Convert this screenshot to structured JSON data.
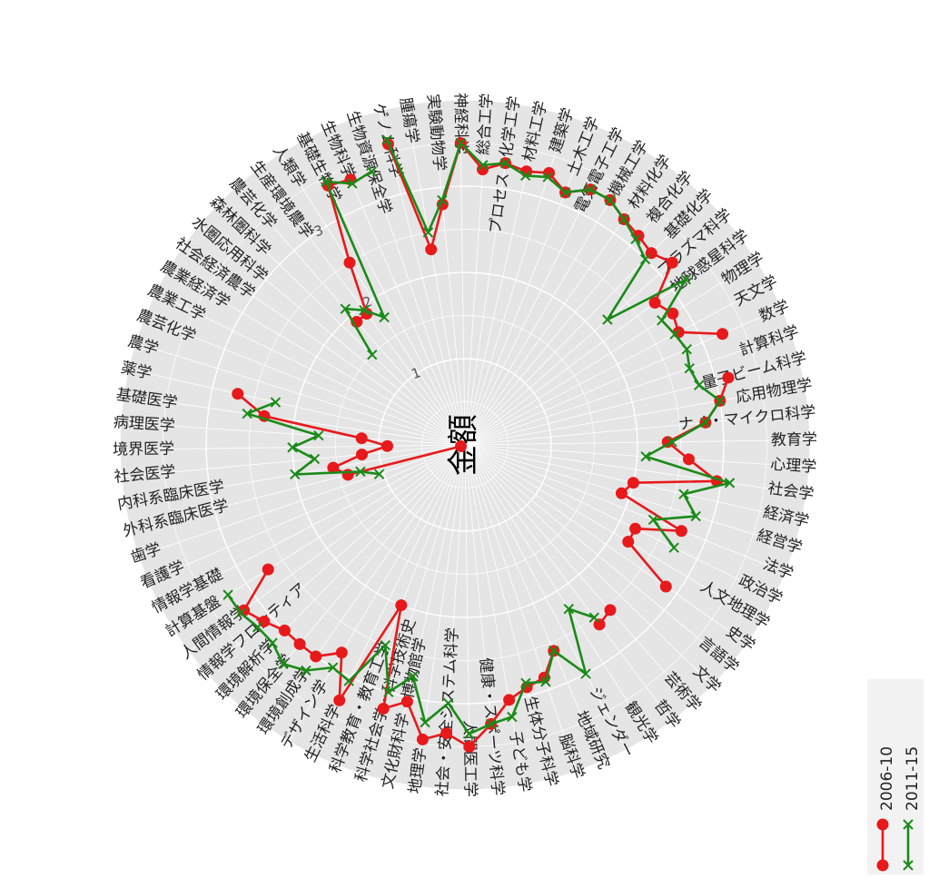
{
  "chart_data": {
    "type": "line",
    "coordinate_system": "polar",
    "center_label": "金額",
    "r_ticks": [
      "1",
      "2",
      "3"
    ],
    "rlim": [
      0,
      4
    ],
    "grid": true,
    "legend_position": "bottom-right",
    "legend_orientation": "vertical",
    "colors": {
      "2006-10": "#e8191b",
      "2011-15": "#1a8a18",
      "grid_bg": "#e5e5e5",
      "grid_line": "#ffffff"
    },
    "categories": [
      "ゲノム科学",
      "腫瘍学",
      "実験動物学",
      "神経科学",
      "総合工学",
      "プロセス・化学工学",
      "材料工学",
      "建築学",
      "土木工学",
      "電気電子工学",
      "機械工学",
      "材料化学",
      "複合化学",
      "基礎化学",
      "プラズマ科学",
      "地球惑星科学",
      "物理学",
      "天文学",
      "数学",
      "計算科学",
      "量子ビーム科学",
      "応用物理学",
      "ナノ・マイクロ科学",
      "教育学",
      "心理学",
      "社会学",
      "経済学",
      "経営学",
      "法学",
      "政治学",
      "人文地理学",
      "史学",
      "言語学",
      "文学",
      "芸術学",
      "哲学",
      "観光学",
      "ジェンダー",
      "地域研究",
      "脳科学",
      "生体分子科学",
      "子ども学",
      "健康・スポーツ科学",
      "人間医工学",
      "社会・安全システム科学",
      "地理学",
      "文化財科学・博物館学",
      "科学社会学・科学技術史",
      "科学教育・教育工学",
      "生活科学",
      "デザイン学",
      "環境創成学",
      "環境保全学",
      "環境解析学",
      "情報学フロンティア",
      "人間情報学",
      "計算基盤",
      "情報学基礎",
      "看護学",
      "歯学",
      "外科系臨床医学",
      "内科系臨床医学",
      "社会医学",
      "境界医学",
      "病理医学",
      "基礎医学",
      "薬学",
      "農学",
      "農芸化学",
      "農業工学",
      "農業経済学",
      "社会経済農学",
      "水圏応用科学",
      "森林圏科学",
      "農芸化学",
      "生産環境農学",
      "人類学",
      "基礎生物学",
      "生物科学",
      "生物資源保全学"
    ],
    "series": [
      {
        "name": "2006-10",
        "values": [
          3.6,
          2.3,
          2.8,
          3.5,
          3.2,
          3.3,
          3.25,
          3.3,
          3.15,
          3.3,
          3.3,
          3.2,
          3.15,
          3.1,
          3.2,
          2.75,
          2.85,
          2.8,
          3.25,
          null,
          3.15,
          3.0,
          2.8,
          2.35,
          2.6,
          2.95,
          2.0,
          1.9,
          2.7,
          2.2,
          2.2,
          2.85,
          null,
          null,
          2.55,
          2.6,
          null,
          null,
          2.6,
          2.85,
          2.9,
          3.0,
          3.25,
          3.5,
          3.35,
          3.45,
          3.05,
          3.2,
          2.0,
          3.3,
          2.8,
          3.0,
          3.0,
          3.0,
          3.1,
          3.2,
          2.7,
          null,
          null,
          0.05,
          1.4,
          1.55,
          1.2,
          0.9,
          1.2,
          2.35,
          2.7,
          null,
          null,
          null,
          null,
          null,
          null,
          null,
          1.9,
          1.9,
          2.5,
          3.4,
          3.35,
          null
        ]
      },
      {
        "name": "2011-15",
        "values": [
          3.65,
          2.5,
          2.85,
          3.5,
          3.25,
          3.3,
          3.2,
          3.25,
          3.15,
          3.3,
          3.3,
          3.2,
          3.1,
          3.0,
          2.2,
          3.2,
          2.7,
          2.75,
          2.8,
          2.75,
          2.8,
          3.0,
          2.8,
          2.4,
          2.1,
          3.1,
          2.6,
          2.8,
          2.35,
          2.7,
          null,
          null,
          null,
          null,
          null,
          2.5,
          2.25,
          3.0,
          2.6,
          2.9,
          2.85,
          3.2,
          3.25,
          3.35,
          3.0,
          3.25,
          2.75,
          3.0,
          2.5,
          3.05,
          3.0,
          3.2,
          3.3,
          3.2,
          3.2,
          3.25,
          3.25,
          null,
          null,
          1.05,
          1.25,
          2.0,
          1.75,
          2.0,
          1.7,
          2.55,
          2.25,
          null,
          null,
          null,
          null,
          null,
          null,
          1.5,
          2.1,
          1.95,
          1.75,
          3.45,
          3.3,
          3.35
        ]
      }
    ]
  }
}
